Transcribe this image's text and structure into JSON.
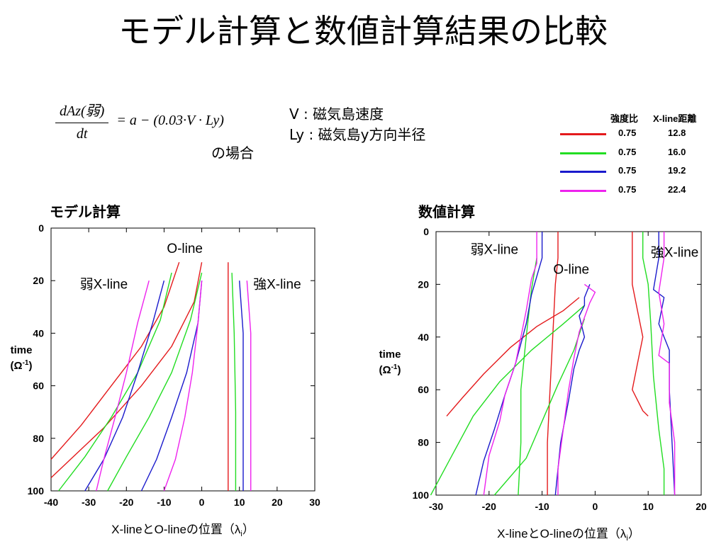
{
  "title": "モデル計算と数値計算結果の比較",
  "formula": {
    "lhs_num": "dAz(弱)",
    "lhs_den": "dt",
    "rhs": "= a − (0.03·V · Ly)",
    "note": "の場合"
  },
  "variables": [
    {
      "text": "V : 磁気島速度"
    },
    {
      "text": "Ly : 磁気島y方向半径"
    }
  ],
  "legend": {
    "header_ratio": "強度比",
    "header_distance": "X-line距離",
    "entries": [
      {
        "color": "#e41a1c",
        "ratio": "0.75",
        "distance": "12.8"
      },
      {
        "color": "#22dd22",
        "ratio": "0.75",
        "distance": "16.0"
      },
      {
        "color": "#1a1acc",
        "ratio": "0.75",
        "distance": "19.2"
      },
      {
        "color": "#ee22ee",
        "ratio": "0.75",
        "distance": "22.4"
      }
    ]
  },
  "chart_data": [
    {
      "type": "line",
      "title": "モデル計算",
      "xlabel": "X-lineとO-lineの位置（λ",
      "xlabel_sub": "i",
      "xlabel_close": "）",
      "ylabel_line1": "time",
      "ylabel_line2": "(Ω",
      "ylabel_sup": "-1",
      "ylabel_line2_close": ")",
      "xlim": [
        -40,
        30
      ],
      "ylim": [
        0,
        100
      ],
      "y_inverted": true,
      "xticks": [
        -40,
        -30,
        -20,
        -10,
        0,
        10,
        20,
        30
      ],
      "yticks": [
        0,
        20,
        40,
        60,
        80,
        100
      ],
      "annotations": [
        {
          "text": "O-line",
          "x": -4.5,
          "y": 9.5
        },
        {
          "text": "弱X-line",
          "x": -26,
          "y": 23
        },
        {
          "text": "強X-line",
          "x": 20,
          "y": 23
        }
      ],
      "series": [
        {
          "color": "#e41a1c",
          "points": [
            [
              -6,
              13
            ],
            [
              -10,
              30
            ],
            [
              -16,
              45
            ],
            [
              -24,
              60
            ],
            [
              -32,
              75
            ],
            [
              -40,
              88
            ]
          ]
        },
        {
          "color": "#e41a1c",
          "points": [
            [
              0,
              13
            ],
            [
              -2,
              28
            ],
            [
              -8,
              45
            ],
            [
              -16,
              60
            ],
            [
              -26,
              76
            ],
            [
              -40,
              95
            ]
          ]
        },
        {
          "color": "#e41a1c",
          "points": [
            [
              7,
              13
            ],
            [
              7,
              40
            ],
            [
              7,
              70
            ],
            [
              7,
              100
            ]
          ]
        },
        {
          "color": "#22dd22",
          "points": [
            [
              -8,
              17
            ],
            [
              -11,
              35
            ],
            [
              -17,
              55
            ],
            [
              -24,
              72
            ],
            [
              -31,
              87
            ],
            [
              -38,
              100
            ]
          ]
        },
        {
          "color": "#22dd22",
          "points": [
            [
              0,
              17
            ],
            [
              -3,
              35
            ],
            [
              -8,
              55
            ],
            [
              -14,
              72
            ],
            [
              -20,
              87
            ],
            [
              -25,
              100
            ]
          ]
        },
        {
          "color": "#22dd22",
          "points": [
            [
              8,
              17
            ],
            [
              8.6,
              40
            ],
            [
              9,
              70
            ],
            [
              9,
              100
            ]
          ]
        },
        {
          "color": "#1a1acc",
          "points": [
            [
              -10,
              20
            ],
            [
              -13,
              36
            ],
            [
              -17,
              55
            ],
            [
              -21,
              72
            ],
            [
              -26,
              88
            ],
            [
              -31,
              100
            ]
          ]
        },
        {
          "color": "#1a1acc",
          "points": [
            [
              0,
              20
            ],
            [
              -1,
              36
            ],
            [
              -4,
              55
            ],
            [
              -8,
              72
            ],
            [
              -12,
              88
            ],
            [
              -16,
              100
            ]
          ]
        },
        {
          "color": "#1a1acc",
          "points": [
            [
              10,
              20
            ],
            [
              11,
              40
            ],
            [
              11,
              70
            ],
            [
              11,
              100
            ]
          ]
        },
        {
          "color": "#ee22ee",
          "points": [
            [
              -14,
              20
            ],
            [
              -17,
              36
            ],
            [
              -20,
              55
            ],
            [
              -23,
              72
            ],
            [
              -26,
              88
            ],
            [
              -28,
              100
            ]
          ]
        },
        {
          "color": "#ee22ee",
          "points": [
            [
              0,
              20
            ],
            [
              -1,
              36
            ],
            [
              -2.5,
              55
            ],
            [
              -4.5,
              72
            ],
            [
              -7,
              88
            ],
            [
              -10,
              100
            ]
          ]
        },
        {
          "color": "#ee22ee",
          "points": [
            [
              12,
              20
            ],
            [
              13,
              40
            ],
            [
              13,
              70
            ],
            [
              13,
              100
            ]
          ]
        }
      ]
    },
    {
      "type": "line",
      "title": "数値計算",
      "xlabel": "X-lineとO-lineの位置（λ",
      "xlabel_sub": "i",
      "xlabel_close": "）",
      "ylabel_line1": "time",
      "ylabel_line2": "(Ω",
      "ylabel_sup": "-1",
      "ylabel_line2_close": ")",
      "xlim": [
        -30,
        20
      ],
      "ylim": [
        0,
        100
      ],
      "y_inverted": true,
      "xticks": [
        -30,
        -20,
        -10,
        0,
        10,
        20
      ],
      "yticks": [
        0,
        20,
        40,
        60,
        80,
        100
      ],
      "annotations": [
        {
          "text": "弱X-line",
          "x": -19,
          "y": 8.5
        },
        {
          "text": "O-line",
          "x": -4.5,
          "y": 16
        },
        {
          "text": "強X-line",
          "x": 15,
          "y": 9.5
        }
      ],
      "series": [
        {
          "color": "#e41a1c",
          "points": [
            [
              -7,
              0
            ],
            [
              -7,
              10
            ],
            [
              -7.5,
              20
            ],
            [
              -8,
              40
            ],
            [
              -8.5,
              60
            ],
            [
              -9,
              80
            ],
            [
              -9,
              100
            ]
          ]
        },
        {
          "color": "#e41a1c",
          "points": [
            [
              -3,
              25
            ],
            [
              -6,
              30
            ],
            [
              -11,
              36
            ],
            [
              -16,
              44
            ],
            [
              -21,
              54
            ],
            [
              -25,
              63
            ],
            [
              -28,
              70
            ]
          ]
        },
        {
          "color": "#e41a1c",
          "points": [
            [
              7,
              0
            ],
            [
              7,
              20
            ],
            [
              8,
              30
            ],
            [
              9,
              40
            ],
            [
              8,
              50
            ],
            [
              7,
              60
            ],
            [
              9,
              68
            ],
            [
              10,
              70
            ]
          ]
        },
        {
          "color": "#22dd22",
          "points": [
            [
              -11,
              10
            ],
            [
              -12,
              22
            ],
            [
              -13,
              40
            ],
            [
              -14,
              60
            ],
            [
              -14,
              80
            ],
            [
              -14.5,
              100
            ]
          ]
        },
        {
          "color": "#22dd22",
          "points": [
            [
              -2,
              28
            ],
            [
              -6,
              35
            ],
            [
              -12,
              45
            ],
            [
              -18,
              57
            ],
            [
              -23,
              70
            ],
            [
              -27,
              85
            ],
            [
              -31,
              100
            ]
          ]
        },
        {
          "color": "#22dd22",
          "points": [
            [
              -2,
              33
            ],
            [
              -4,
              45
            ],
            [
              -7,
              58
            ],
            [
              -10,
              72
            ],
            [
              -13,
              86
            ],
            [
              -19,
              100
            ]
          ]
        },
        {
          "color": "#22dd22",
          "points": [
            [
              9,
              0
            ],
            [
              9,
              10
            ],
            [
              10,
              20
            ],
            [
              10.5,
              35
            ],
            [
              11,
              55
            ],
            [
              12,
              75
            ],
            [
              13,
              90
            ],
            [
              13,
              100
            ]
          ]
        },
        {
          "color": "#1a1acc",
          "points": [
            [
              -10,
              0
            ],
            [
              -10,
              10
            ],
            [
              -12,
              24
            ],
            [
              -13,
              35
            ],
            [
              -15,
              50
            ],
            [
              -17,
              62
            ],
            [
              -19,
              75
            ],
            [
              -21,
              87
            ],
            [
              -22.5,
              100
            ]
          ]
        },
        {
          "color": "#1a1acc",
          "points": [
            [
              -1,
              20
            ],
            [
              -2,
              25
            ],
            [
              -2,
              28
            ],
            [
              -3,
              32
            ],
            [
              -2,
              40
            ],
            [
              -3,
              45
            ],
            [
              -4,
              52
            ],
            [
              -5,
              64
            ],
            [
              -6.5,
              80
            ],
            [
              -7.5,
              100
            ]
          ]
        },
        {
          "color": "#1a1acc",
          "points": [
            [
              12,
              0
            ],
            [
              12,
              10
            ],
            [
              11,
              22
            ],
            [
              13,
              25
            ],
            [
              12,
              35
            ],
            [
              14,
              45
            ],
            [
              14,
              60
            ],
            [
              14.5,
              80
            ],
            [
              15,
              100
            ]
          ]
        },
        {
          "color": "#ee22ee",
          "points": [
            [
              -11,
              0
            ],
            [
              -11,
              12
            ],
            [
              -12,
              18
            ],
            [
              -13,
              30
            ],
            [
              -14,
              40
            ],
            [
              -15,
              50
            ],
            [
              -17,
              62
            ],
            [
              -18,
              72
            ],
            [
              -20,
              85
            ],
            [
              -21,
              100
            ]
          ]
        },
        {
          "color": "#ee22ee",
          "points": [
            [
              -2,
              20
            ],
            [
              0,
              23
            ],
            [
              -1,
              27
            ],
            [
              -3,
              38
            ],
            [
              -4,
              48
            ],
            [
              -5,
              60
            ],
            [
              -6,
              75
            ],
            [
              -7,
              90
            ],
            [
              -7,
              100
            ]
          ]
        },
        {
          "color": "#ee22ee",
          "points": [
            [
              13,
              0
            ],
            [
              13,
              10
            ],
            [
              12,
              23
            ],
            [
              13,
              35
            ],
            [
              12,
              47
            ],
            [
              14,
              50
            ],
            [
              14,
              65
            ],
            [
              15,
              80
            ],
            [
              15,
              100
            ]
          ]
        }
      ]
    }
  ]
}
